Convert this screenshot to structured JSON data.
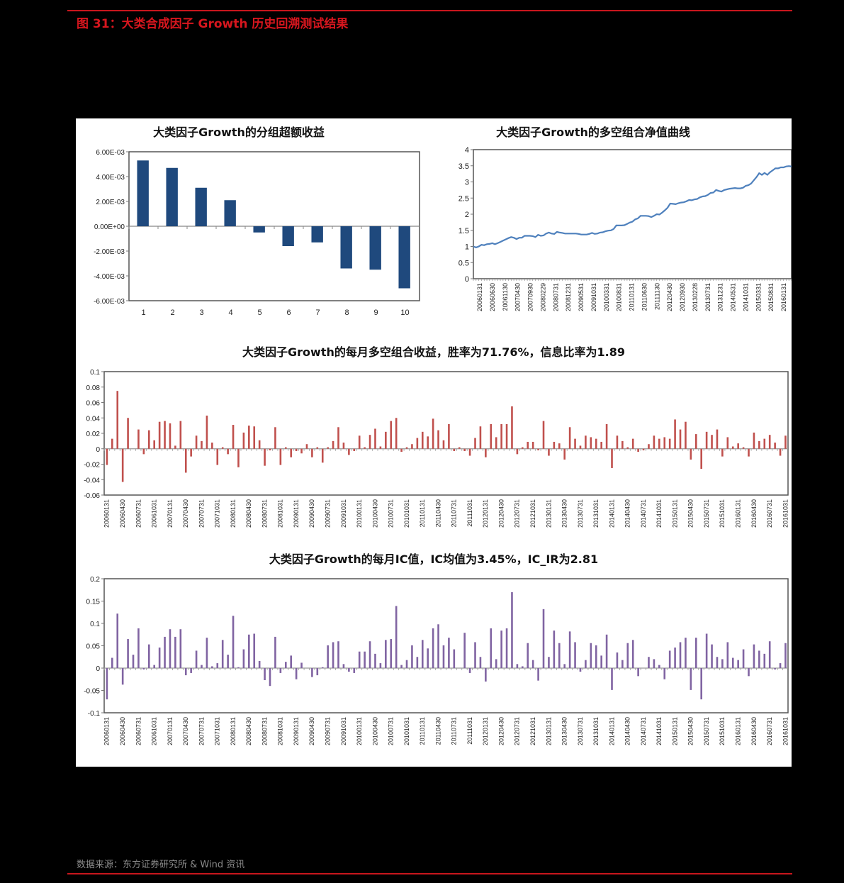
{
  "figure": {
    "title": "图 31：大类合成因子 Growth 历史回溯测试结果",
    "source": "数据来源：东方证券研究所 & Wind 资讯",
    "accent_color": "#c8161d"
  },
  "chart_data": [
    {
      "id": "group-excess-return",
      "type": "bar",
      "title": "大类因子Growth的分组超额收益",
      "categories": [
        "1",
        "2",
        "3",
        "4",
        "5",
        "6",
        "7",
        "8",
        "9",
        "10"
      ],
      "values": [
        0.0053,
        0.0047,
        0.0031,
        0.0021,
        -0.0005,
        -0.0016,
        -0.0013,
        -0.0034,
        -0.0035,
        -0.005
      ],
      "ylim": [
        -0.006,
        0.006
      ],
      "yticks": [
        "6.00E-03",
        "4.00E-03",
        "2.00E-03",
        "0.00E+00",
        "-2.00E-03",
        "-4.00E-03",
        "-6.00E-03"
      ],
      "xlabel": "",
      "ylabel": "",
      "color": "#1f497d",
      "grid": false
    },
    {
      "id": "long-short-nav",
      "type": "line",
      "title": "大类因子Growth的多空组合净值曲线",
      "x_ticks": [
        "20060131",
        "20060630",
        "20061130",
        "20070430",
        "20070930",
        "20080229",
        "20080731",
        "20081231",
        "20090531",
        "20091031",
        "20100331",
        "20100831",
        "20110131",
        "20110630",
        "20111130",
        "20120430",
        "20120930",
        "20130228",
        "20130731",
        "20131231",
        "20140531",
        "20141031",
        "20150331",
        "20150831",
        "20160131"
      ],
      "values": [
        1.0,
        0.97,
        1.0,
        1.05,
        1.04,
        1.07,
        1.08,
        1.1,
        1.07,
        1.1,
        1.14,
        1.18,
        1.22,
        1.26,
        1.29,
        1.27,
        1.23,
        1.27,
        1.27,
        1.33,
        1.33,
        1.33,
        1.32,
        1.29,
        1.36,
        1.33,
        1.34,
        1.4,
        1.43,
        1.4,
        1.39,
        1.45,
        1.43,
        1.42,
        1.4,
        1.4,
        1.4,
        1.4,
        1.4,
        1.39,
        1.37,
        1.37,
        1.37,
        1.39,
        1.42,
        1.39,
        1.4,
        1.43,
        1.44,
        1.47,
        1.49,
        1.5,
        1.54,
        1.65,
        1.65,
        1.65,
        1.66,
        1.7,
        1.74,
        1.77,
        1.84,
        1.87,
        1.95,
        1.95,
        1.95,
        1.94,
        1.91,
        1.95,
        2.0,
        1.99,
        2.05,
        2.12,
        2.2,
        2.33,
        2.32,
        2.31,
        2.34,
        2.36,
        2.37,
        2.4,
        2.44,
        2.43,
        2.46,
        2.47,
        2.52,
        2.55,
        2.56,
        2.6,
        2.66,
        2.67,
        2.75,
        2.72,
        2.7,
        2.75,
        2.77,
        2.79,
        2.8,
        2.81,
        2.8,
        2.8,
        2.82,
        2.88,
        2.9,
        2.95,
        3.05,
        3.15,
        3.27,
        3.22,
        3.28,
        3.22,
        3.3,
        3.36,
        3.42,
        3.42,
        3.45,
        3.45,
        3.48,
        3.49,
        3.48
      ],
      "ylim": [
        0,
        4
      ],
      "yticks": [
        "0",
        "0.5",
        "1",
        "1.5",
        "2",
        "2.5",
        "3",
        "3.5",
        "4"
      ],
      "color": "#4f81bd",
      "grid": false
    },
    {
      "id": "monthly-long-short-return",
      "type": "bar",
      "title": "大类因子Growth的每月多空组合收益，胜率为71.76%，信息比率为1.89",
      "x_ticks": [
        "20060131",
        "20060430",
        "20060731",
        "20061031",
        "20070131",
        "20070430",
        "20070731",
        "20071031",
        "20080131",
        "20080430",
        "20080731",
        "20081031",
        "20090131",
        "20090430",
        "20090731",
        "20091031",
        "20100131",
        "20100430",
        "20100731",
        "20101031",
        "20110131",
        "20110430",
        "20110731",
        "20111031",
        "20120131",
        "20120430",
        "20120731",
        "20121031",
        "20130131",
        "20130430",
        "20130731",
        "20131031",
        "20140131",
        "20140430",
        "20140731",
        "20141031",
        "20150131",
        "20150430",
        "20150731",
        "20151031",
        "20160131",
        "20160430",
        "20160731",
        "20161031"
      ],
      "values": [
        -0.021,
        0.013,
        0.075,
        -0.043,
        0.04,
        0,
        0.025,
        -0.007,
        0.024,
        0.011,
        0.035,
        0.036,
        0.033,
        0.004,
        0.036,
        -0.031,
        -0.01,
        0.017,
        0.01,
        0.043,
        0.008,
        -0.021,
        0.002,
        -0.007,
        0.031,
        -0.024,
        0.021,
        0.03,
        0.029,
        0.011,
        -0.022,
        -0.002,
        0.028,
        -0.021,
        0.002,
        -0.011,
        -0.003,
        -0.006,
        0.006,
        -0.011,
        0.002,
        -0.018,
        0.002,
        0.01,
        0.028,
        0.008,
        -0.008,
        -0.003,
        0.017,
        0.002,
        0.018,
        0.026,
        0.003,
        0.022,
        0.036,
        0.04,
        -0.004,
        0.002,
        0.006,
        0.014,
        0.022,
        0.016,
        0.039,
        0.024,
        0.011,
        0.032,
        -0.003,
        0.002,
        -0.003,
        -0.009,
        0.014,
        0.029,
        -0.011,
        0.032,
        0.015,
        0.032,
        0.032,
        0.055,
        -0.007,
        0.002,
        0.009,
        0.009,
        -0.002,
        0.036,
        -0.009,
        0.009,
        0.007,
        -0.014,
        0.028,
        0.013,
        0.004,
        0.017,
        0.015,
        0.013,
        0.009,
        0.032,
        -0.025,
        0.017,
        0.01,
        0.002,
        0.013,
        -0.004,
        -0.002,
        0.006,
        0.017,
        0.013,
        0.015,
        0.013,
        0.038,
        0.025,
        0.035,
        -0.014,
        0.019,
        -0.026,
        0.022,
        0.018,
        0.025,
        -0.01,
        0.015,
        0.003,
        0.007,
        0.002,
        -0.01,
        0.021,
        0.01,
        0.013,
        0.018,
        0.008,
        -0.009,
        0.017
      ],
      "ylim": [
        -0.06,
        0.1
      ],
      "yticks": [
        "0.1",
        "0.08",
        "0.06",
        "0.04",
        "0.02",
        "0",
        "-0.02",
        "-0.04",
        "-0.06"
      ],
      "color": "#c0504d",
      "win_rate": "71.76%",
      "information_ratio": "1.89",
      "grid": false
    },
    {
      "id": "monthly-ic",
      "type": "bar",
      "title": "大类因子Growth的每月IC值，IC均值为3.45%，IC_IR为2.81",
      "x_ticks": [
        "20060131",
        "20060430",
        "20060731",
        "20061031",
        "20070131",
        "20070430",
        "20070731",
        "20071031",
        "20080131",
        "20080430",
        "20080731",
        "20081031",
        "20090131",
        "20090430",
        "20090731",
        "20091031",
        "20100131",
        "20100430",
        "20100731",
        "20101031",
        "20110131",
        "20110430",
        "20110731",
        "20111031",
        "20120131",
        "20120430",
        "20120731",
        "20121031",
        "20130131",
        "20130430",
        "20130731",
        "20131031",
        "20140131",
        "20140430",
        "20140731",
        "20141031",
        "20150131",
        "20150430",
        "20150731",
        "20151031",
        "20160131",
        "20160430",
        "20160731",
        "20161031"
      ],
      "values": [
        -0.07,
        0.023,
        0.122,
        -0.037,
        0.065,
        0.03,
        0.089,
        -0.003,
        0.053,
        0.007,
        0.046,
        0.07,
        0.087,
        0.07,
        0.087,
        -0.016,
        -0.011,
        0.039,
        0.007,
        0.068,
        0.004,
        0.011,
        0.063,
        0.03,
        0.117,
        0.002,
        0.042,
        0.075,
        0.077,
        0.016,
        -0.027,
        -0.04,
        0.07,
        -0.011,
        0.014,
        0.028,
        -0.025,
        0.012,
        0,
        -0.02,
        -0.016,
        0.002,
        0.051,
        0.058,
        0.06,
        0.009,
        -0.008,
        -0.011,
        0.037,
        0.037,
        0.06,
        0.032,
        0.011,
        0.063,
        0.065,
        0.139,
        0.007,
        0.018,
        0.051,
        0.025,
        0.063,
        0.044,
        0.089,
        0.098,
        0.051,
        0.068,
        0.042,
        0,
        0.079,
        -0.011,
        0.058,
        0.025,
        -0.03,
        0.089,
        0.02,
        0.084,
        0.089,
        0.17,
        0.009,
        0.004,
        0.056,
        0.018,
        -0.028,
        0.132,
        0.025,
        0.084,
        0.056,
        0.009,
        0.082,
        0.058,
        -0.008,
        0.018,
        0.056,
        0.051,
        0.028,
        0.075,
        -0.049,
        0.035,
        0.018,
        0.056,
        0.063,
        -0.018,
        0,
        0.025,
        0.02,
        0.007,
        -0.025,
        0.039,
        0.046,
        0.058,
        0.068,
        -0.049,
        0.068,
        -0.07,
        0.077,
        0.053,
        0.025,
        0.02,
        0.058,
        0.023,
        0.018,
        0.042,
        -0.018,
        0.053,
        0.039,
        0.032,
        0.06,
        -0.003,
        0.011,
        0.056
      ],
      "ylim": [
        -0.1,
        0.2
      ],
      "yticks": [
        "0.2",
        "0.15",
        "0.1",
        "0.05",
        "0",
        "-0.05",
        "-0.1"
      ],
      "color": "#8064a2",
      "ic_mean": "3.45%",
      "ic_ir": "2.81",
      "grid": false
    }
  ]
}
